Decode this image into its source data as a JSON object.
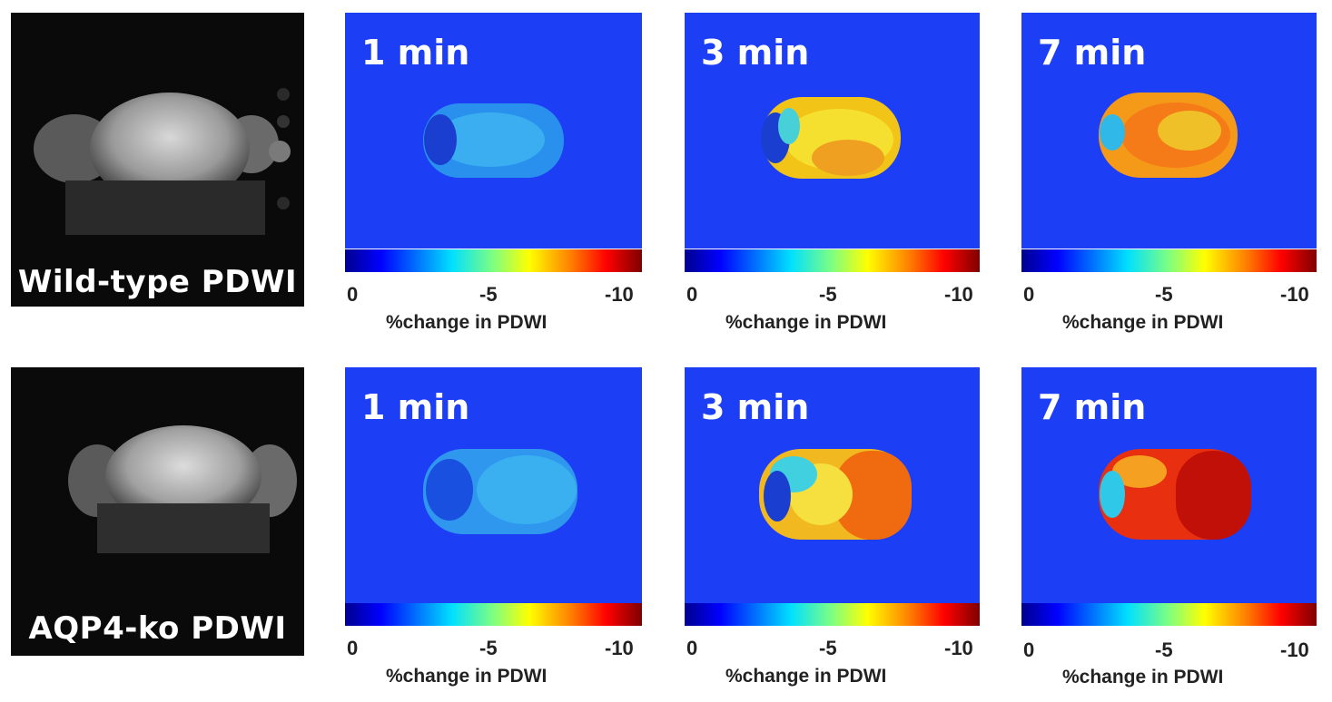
{
  "rows": [
    {
      "mri_label": "Wild-type PDWI",
      "panels": [
        {
          "time": "1 min"
        },
        {
          "time": "3 min"
        },
        {
          "time": "7 min"
        }
      ]
    },
    {
      "mri_label": "AQP4-ko PDWI",
      "panels": [
        {
          "time": "1 min"
        },
        {
          "time": "3 min"
        },
        {
          "time": "7 min"
        }
      ]
    }
  ],
  "colorbar": {
    "tick_left": "0",
    "tick_mid": "-5",
    "tick_right": "-10",
    "label": "%change in PDWI"
  },
  "colors": {
    "map_background": "#1c3ff5",
    "mri_background": "#0a0a0a"
  }
}
